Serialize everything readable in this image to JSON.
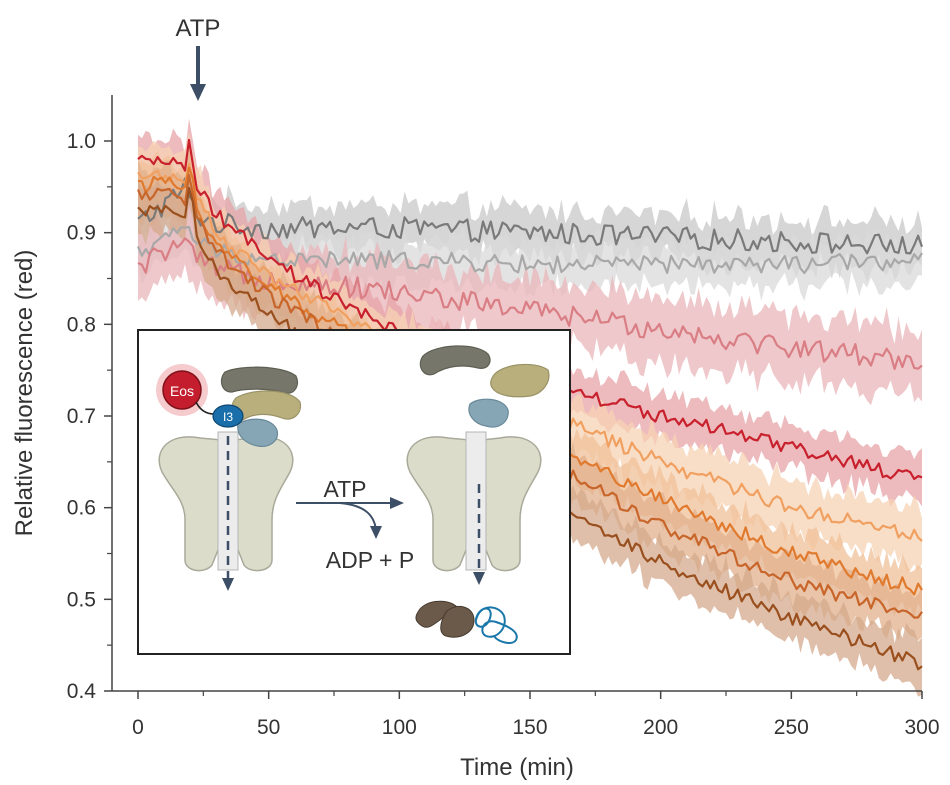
{
  "chart_data": {
    "type": "line",
    "title": "",
    "xlabel": "Time (min)",
    "ylabel": "Relative fluorescence (red)",
    "xlim": [
      0,
      300
    ],
    "ylim": [
      0.4,
      1.05
    ],
    "x_ticks": [
      0,
      50,
      100,
      150,
      200,
      250,
      300
    ],
    "y_ticks": [
      0.4,
      0.5,
      0.6,
      0.7,
      0.8,
      0.9,
      1.0
    ],
    "x_tick_labels": [
      "0",
      "50",
      "100",
      "150",
      "200",
      "250",
      "300"
    ],
    "y_tick_labels": [
      "0.4",
      "0.5",
      "0.6",
      "0.7",
      "0.8",
      "0.9",
      "1.0"
    ],
    "grid": false,
    "annotation": {
      "label": "ATP",
      "x": 23
    },
    "series": [
      {
        "name": "control-dark-gray",
        "color": "#7a7a7a",
        "band_color": "#c8c8c8",
        "x": [
          0,
          10,
          18,
          22,
          30,
          50,
          100,
          150,
          200,
          250,
          300
        ],
        "values": [
          0.91,
          0.93,
          0.95,
          0.92,
          0.91,
          0.905,
          0.905,
          0.9,
          0.895,
          0.89,
          0.885
        ],
        "band": 0.025,
        "noise": 0.012
      },
      {
        "name": "control-light-gray",
        "color": "#a8a8a8",
        "band_color": "#dadada",
        "x": [
          0,
          10,
          18,
          22,
          30,
          50,
          100,
          150,
          200,
          250,
          300
        ],
        "values": [
          0.88,
          0.89,
          0.91,
          0.89,
          0.88,
          0.87,
          0.87,
          0.865,
          0.865,
          0.865,
          0.87
        ],
        "band": 0.025,
        "noise": 0.01
      },
      {
        "name": "pink",
        "color": "#d97e84",
        "band_color": "#eab6b9",
        "x": [
          0,
          10,
          18,
          22,
          30,
          50,
          100,
          150,
          200,
          250,
          300
        ],
        "values": [
          0.86,
          0.88,
          0.89,
          0.87,
          0.86,
          0.85,
          0.835,
          0.815,
          0.795,
          0.775,
          0.76
        ],
        "band": 0.035,
        "noise": 0.012
      },
      {
        "name": "red",
        "color": "#c8202c",
        "band_color": "#e7a3a7",
        "x": [
          0,
          10,
          18,
          20,
          22,
          30,
          50,
          80,
          100,
          150,
          200,
          250,
          300
        ],
        "values": [
          0.975,
          0.98,
          0.975,
          1.0,
          0.95,
          0.92,
          0.87,
          0.82,
          0.79,
          0.74,
          0.7,
          0.665,
          0.63
        ],
        "band": 0.025,
        "noise": 0.008
      },
      {
        "name": "light-orange",
        "color": "#f0a060",
        "band_color": "#f7d3b4",
        "x": [
          0,
          10,
          18,
          20,
          22,
          30,
          50,
          100,
          150,
          200,
          250,
          300
        ],
        "values": [
          0.96,
          0.965,
          0.955,
          0.99,
          0.94,
          0.9,
          0.85,
          0.78,
          0.71,
          0.65,
          0.6,
          0.57
        ],
        "band": 0.03,
        "noise": 0.008
      },
      {
        "name": "orange",
        "color": "#e07a2e",
        "band_color": "#f0c09a",
        "x": [
          0,
          10,
          18,
          20,
          22,
          30,
          50,
          100,
          150,
          200,
          250,
          300
        ],
        "values": [
          0.95,
          0.955,
          0.945,
          0.985,
          0.93,
          0.89,
          0.84,
          0.76,
          0.68,
          0.61,
          0.55,
          0.51
        ],
        "band": 0.025,
        "noise": 0.008
      },
      {
        "name": "dark-orange",
        "color": "#c8652a",
        "band_color": "#e2b08c",
        "x": [
          0,
          10,
          18,
          20,
          22,
          30,
          50,
          100,
          150,
          200,
          250,
          300
        ],
        "values": [
          0.94,
          0.945,
          0.935,
          0.975,
          0.92,
          0.88,
          0.83,
          0.75,
          0.66,
          0.58,
          0.52,
          0.48
        ],
        "band": 0.025,
        "noise": 0.008
      },
      {
        "name": "brown",
        "color": "#9a4f1e",
        "band_color": "#d4aa8c",
        "x": [
          0,
          10,
          18,
          20,
          22,
          30,
          50,
          100,
          150,
          200,
          250,
          300
        ],
        "values": [
          0.92,
          0.925,
          0.915,
          0.96,
          0.9,
          0.86,
          0.81,
          0.72,
          0.62,
          0.54,
          0.48,
          0.43
        ],
        "band": 0.025,
        "noise": 0.008
      }
    ]
  },
  "inset": {
    "eos_label": "Eos",
    "i3_label": "I3",
    "atp_label": "ATP",
    "adp_label": "ADP + P",
    "colors": {
      "membrane": "#dcdccb",
      "channel": "#ececec",
      "dark_olive": "#76776a",
      "khaki": "#b8af7d",
      "steel_blue": "#86a6b6",
      "eos_red": "#c41e2e",
      "i3_blue": "#1a6fab",
      "arrow": "#3d4f66",
      "peptide": "#1a77aa",
      "fragment": "#6b5a4a"
    }
  }
}
